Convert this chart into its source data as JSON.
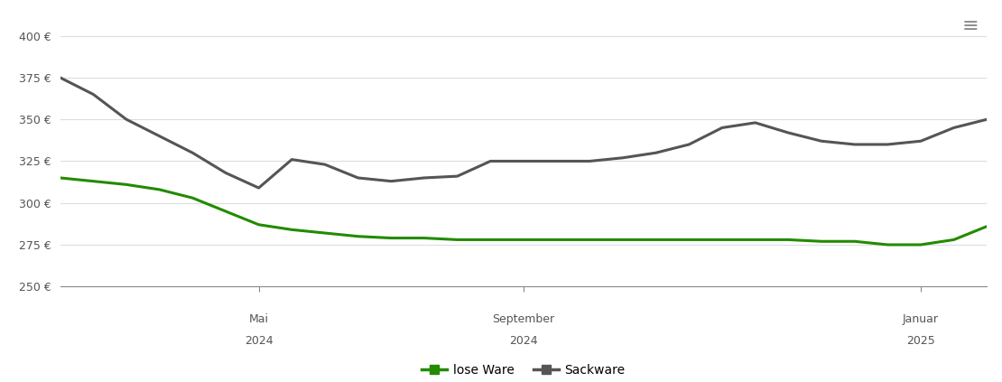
{
  "background_color": "#ffffff",
  "grid_color": "#dddddd",
  "ylim": [
    250,
    410
  ],
  "yticks": [
    250,
    275,
    300,
    325,
    350,
    375,
    400
  ],
  "ytick_labels": [
    "250 €",
    "275 €",
    "300 €",
    "325 €",
    "350 €",
    "375 €",
    "400 €"
  ],
  "xtick_positions": [
    3,
    7,
    13
  ],
  "xtick_labels_line1": [
    "Mai",
    "September",
    "Januar"
  ],
  "xtick_labels_line2": [
    "2024",
    "2024",
    "2025"
  ],
  "loseware_color": "#228B00",
  "sackware_color": "#555555",
  "loseware_label": "lose Ware",
  "sackware_label": "Sackware",
  "loseware_x": [
    0,
    0.5,
    1,
    1.5,
    2,
    2.5,
    3,
    3.5,
    4,
    4.5,
    5,
    5.5,
    6,
    6.5,
    7,
    7.5,
    8,
    8.5,
    9,
    9.5,
    10,
    10.5,
    11,
    11.5,
    12,
    12.5,
    13,
    13.5,
    14
  ],
  "loseware_y": [
    315,
    313,
    311,
    308,
    303,
    295,
    287,
    284,
    282,
    280,
    279,
    279,
    278,
    278,
    278,
    278,
    278,
    278,
    278,
    278,
    278,
    278,
    278,
    277,
    277,
    275,
    275,
    278,
    286
  ],
  "sackware_x": [
    0,
    0.5,
    1,
    1.5,
    2,
    2.5,
    3,
    3.5,
    4,
    4.5,
    5,
    5.5,
    6,
    6.5,
    7,
    7.5,
    8,
    8.5,
    9,
    9.5,
    10,
    10.5,
    11,
    11.5,
    12,
    12.5,
    13,
    13.5,
    14
  ],
  "sackware_y": [
    375,
    365,
    350,
    340,
    330,
    318,
    309,
    326,
    323,
    315,
    313,
    315,
    316,
    325,
    325,
    325,
    325,
    327,
    330,
    335,
    345,
    348,
    342,
    337,
    335,
    335,
    337,
    345,
    350
  ],
  "xlim": [
    0,
    14
  ]
}
